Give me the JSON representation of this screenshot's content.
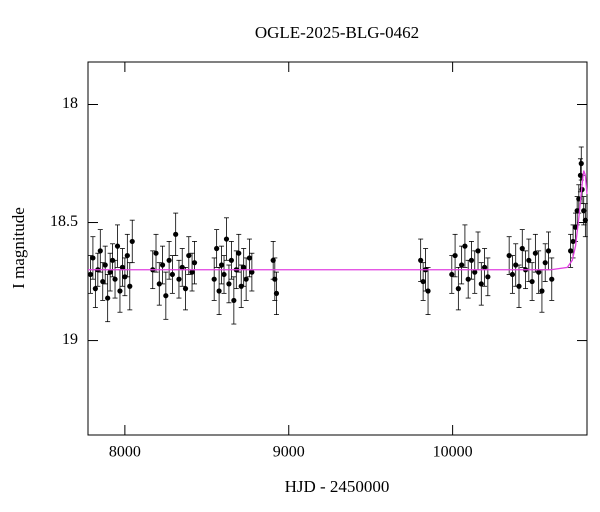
{
  "chart_data": {
    "type": "scatter",
    "title": "OGLE-2025-BLG-0462",
    "x_label": "HJD - 2450000",
    "y_label": "I magnitude",
    "xlim": [
      7775,
      10820
    ],
    "ylim": [
      17.82,
      19.4
    ],
    "invert_y": true,
    "xticks": [
      8000,
      9000,
      10000
    ],
    "yticks": [
      18,
      18.5,
      19
    ],
    "series": [
      {
        "color": "#000000",
        "error_bars": true,
        "x": [
          7790,
          7805,
          7820,
          7835,
          7850,
          7865,
          7880,
          7895,
          7910,
          7925,
          7940,
          7955,
          7970,
          7985,
          8000,
          8015,
          8030,
          8045,
          8170,
          8190,
          8210,
          8230,
          8250,
          8270,
          8290,
          8310,
          8330,
          8350,
          8370,
          8390,
          8410,
          8425,
          8545,
          8560,
          8575,
          8590,
          8605,
          8620,
          8635,
          8650,
          8665,
          8680,
          8695,
          8710,
          8725,
          8740,
          8760,
          8775,
          8905,
          8915,
          8925,
          9805,
          9820,
          9835,
          9850,
          9995,
          10015,
          10035,
          10055,
          10075,
          10095,
          10115,
          10135,
          10155,
          10175,
          10195,
          10215,
          10345,
          10365,
          10385,
          10405,
          10425,
          10445,
          10465,
          10485,
          10505,
          10525,
          10545,
          10565,
          10585,
          10605,
          10720,
          10735,
          10750,
          10760,
          10770,
          10780,
          10785,
          10790,
          10800,
          10810
        ],
        "values": [
          18.72,
          18.65,
          18.78,
          18.7,
          18.62,
          18.75,
          18.68,
          18.82,
          18.71,
          18.66,
          18.74,
          18.6,
          18.79,
          18.69,
          18.73,
          18.64,
          18.77,
          18.58,
          18.7,
          18.63,
          18.76,
          18.68,
          18.81,
          18.66,
          18.72,
          18.55,
          18.74,
          18.69,
          18.78,
          18.64,
          18.71,
          18.67,
          18.74,
          18.61,
          18.79,
          18.68,
          18.72,
          18.57,
          18.76,
          18.66,
          18.83,
          18.7,
          18.63,
          18.77,
          18.69,
          18.74,
          18.65,
          18.71,
          18.66,
          18.74,
          18.8,
          18.66,
          18.75,
          18.7,
          18.79,
          18.72,
          18.64,
          18.78,
          18.68,
          18.6,
          18.74,
          18.66,
          18.71,
          18.62,
          18.76,
          18.69,
          18.73,
          18.64,
          18.72,
          18.68,
          18.77,
          18.61,
          18.7,
          18.66,
          18.75,
          18.63,
          18.71,
          18.79,
          18.67,
          18.62,
          18.74,
          18.62,
          18.58,
          18.52,
          18.45,
          18.4,
          18.3,
          18.25,
          18.36,
          18.45,
          18.49
        ],
        "errors": [
          0.08,
          0.09,
          0.08,
          0.07,
          0.09,
          0.08,
          0.08,
          0.1,
          0.08,
          0.07,
          0.08,
          0.09,
          0.09,
          0.08,
          0.08,
          0.09,
          0.1,
          0.09,
          0.08,
          0.08,
          0.09,
          0.08,
          0.1,
          0.08,
          0.08,
          0.09,
          0.08,
          0.08,
          0.09,
          0.08,
          0.08,
          0.09,
          0.09,
          0.08,
          0.1,
          0.08,
          0.08,
          0.09,
          0.08,
          0.08,
          0.1,
          0.08,
          0.08,
          0.09,
          0.08,
          0.09,
          0.08,
          0.08,
          0.08,
          0.09,
          0.09,
          0.09,
          0.08,
          0.09,
          0.1,
          0.08,
          0.09,
          0.09,
          0.08,
          0.09,
          0.08,
          0.08,
          0.09,
          0.08,
          0.09,
          0.08,
          0.08,
          0.08,
          0.08,
          0.09,
          0.09,
          0.08,
          0.08,
          0.09,
          0.08,
          0.08,
          0.09,
          0.09,
          0.08,
          0.08,
          0.09,
          0.07,
          0.07,
          0.06,
          0.06,
          0.06,
          0.07,
          0.07,
          0.06,
          0.06,
          0.07
        ]
      },
      {
        "color": "#e040e0",
        "line": true,
        "x": [
          7775,
          10600,
          10700,
          10730,
          10750,
          10770,
          10790,
          10800,
          10810,
          10820
        ],
        "values": [
          18.7,
          18.7,
          18.69,
          18.66,
          18.6,
          18.48,
          18.34,
          18.28,
          18.3,
          18.38
        ]
      }
    ]
  }
}
